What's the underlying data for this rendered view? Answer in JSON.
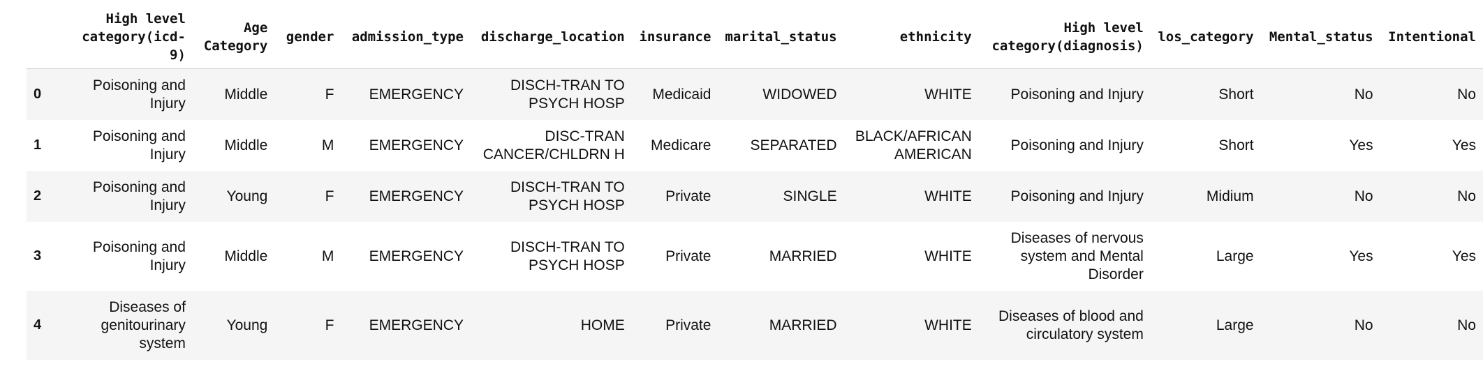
{
  "table": {
    "columns": [
      "",
      "High level\ncategory(icd-\n9)",
      "Age\nCategory",
      "gender",
      "admission_type",
      "discharge_location",
      "insurance",
      "marital_status",
      "ethnicity",
      "High level\ncategory(diagnosis)",
      "los_category",
      "Mental_status",
      "Intentional"
    ],
    "rows": [
      {
        "index": "0",
        "cells": [
          "Poisoning and\nInjury",
          "Middle",
          "F",
          "EMERGENCY",
          "DISCH-TRAN TO\nPSYCH HOSP",
          "Medicaid",
          "WIDOWED",
          "WHITE",
          "Poisoning and Injury",
          "Short",
          "No",
          "No"
        ]
      },
      {
        "index": "1",
        "cells": [
          "Poisoning and\nInjury",
          "Middle",
          "M",
          "EMERGENCY",
          "DISC-TRAN\nCANCER/CHLDRN H",
          "Medicare",
          "SEPARATED",
          "BLACK/AFRICAN\nAMERICAN",
          "Poisoning and Injury",
          "Short",
          "Yes",
          "Yes"
        ]
      },
      {
        "index": "2",
        "cells": [
          "Poisoning and\nInjury",
          "Young",
          "F",
          "EMERGENCY",
          "DISCH-TRAN TO\nPSYCH HOSP",
          "Private",
          "SINGLE",
          "WHITE",
          "Poisoning and Injury",
          "Midium",
          "No",
          "No"
        ]
      },
      {
        "index": "3",
        "cells": [
          "Poisoning and\nInjury",
          "Middle",
          "M",
          "EMERGENCY",
          "DISCH-TRAN TO\nPSYCH HOSP",
          "Private",
          "MARRIED",
          "WHITE",
          "Diseases of nervous\nsystem and Mental\nDisorder",
          "Large",
          "Yes",
          "Yes"
        ]
      },
      {
        "index": "4",
        "cells": [
          "Diseases of\ngenitourinary\nsystem",
          "Young",
          "F",
          "EMERGENCY",
          "HOME",
          "Private",
          "MARRIED",
          "WHITE",
          "Diseases of blood and\ncirculatory system",
          "Large",
          "No",
          "No"
        ]
      }
    ]
  }
}
